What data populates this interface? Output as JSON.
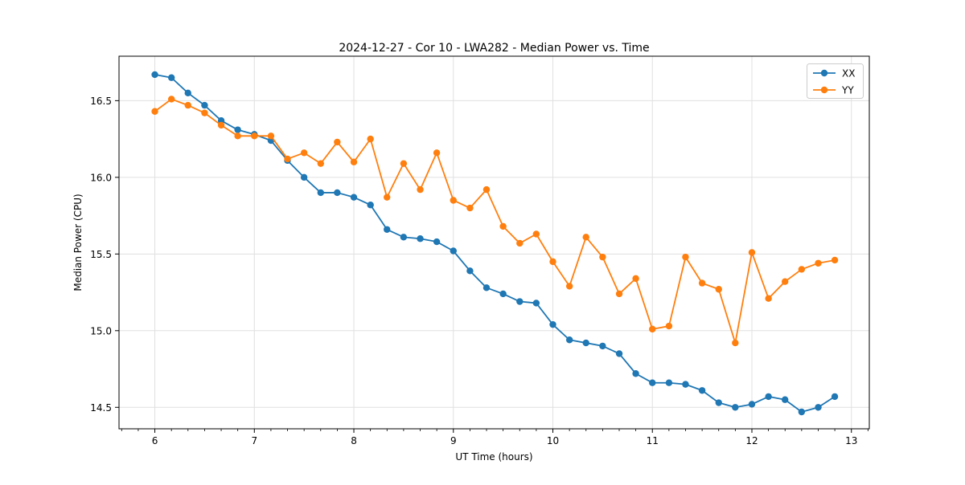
{
  "chart_data": {
    "type": "line",
    "title": "2024-12-27 - Cor 10 - LWA282 - Median Power vs. Time",
    "xlabel": "UT Time (hours)",
    "ylabel": "Median Power (CPU)",
    "xlim": [
      5.64,
      13.18
    ],
    "ylim": [
      14.36,
      16.79
    ],
    "x_ticks": [
      6,
      7,
      8,
      9,
      10,
      11,
      12,
      13
    ],
    "y_ticks": [
      14.5,
      15.0,
      15.5,
      16.0,
      16.5
    ],
    "x_minor_tick_step_hours": 0.1667,
    "grid": "major-only",
    "legend_position": "upper right",
    "marker": "circle",
    "x": [
      6.0,
      6.167,
      6.333,
      6.5,
      6.667,
      6.833,
      7.0,
      7.167,
      7.333,
      7.5,
      7.667,
      7.833,
      8.0,
      8.167,
      8.333,
      8.5,
      8.667,
      8.833,
      9.0,
      9.167,
      9.333,
      9.5,
      9.667,
      9.833,
      10.0,
      10.167,
      10.333,
      10.5,
      10.667,
      10.833,
      11.0,
      11.167,
      11.333,
      11.5,
      11.667,
      11.833,
      12.0,
      12.167,
      12.333,
      12.5,
      12.667,
      12.833
    ],
    "series": [
      {
        "name": "XX",
        "color": "#1f77b4",
        "values": [
          16.67,
          16.65,
          16.55,
          16.47,
          16.37,
          16.31,
          16.28,
          16.24,
          16.11,
          16.0,
          15.9,
          15.9,
          15.87,
          15.82,
          15.66,
          15.61,
          15.6,
          15.58,
          15.52,
          15.39,
          15.28,
          15.24,
          15.19,
          15.18,
          15.04,
          14.94,
          14.92,
          14.9,
          14.85,
          14.72,
          14.66,
          14.66,
          14.65,
          14.61,
          14.53,
          14.5,
          14.52,
          14.57,
          14.55,
          14.47,
          14.5,
          14.57
        ]
      },
      {
        "name": "YY",
        "color": "#ff7f0e",
        "values": [
          16.43,
          16.51,
          16.47,
          16.42,
          16.34,
          16.27,
          16.27,
          16.27,
          16.12,
          16.16,
          16.09,
          16.23,
          16.1,
          16.25,
          15.87,
          16.09,
          15.92,
          16.16,
          15.85,
          15.8,
          15.92,
          15.68,
          15.57,
          15.63,
          15.45,
          15.29,
          15.61,
          15.48,
          15.24,
          15.34,
          15.01,
          15.03,
          15.48,
          15.31,
          15.27,
          14.92,
          15.51,
          15.21,
          15.32,
          15.4,
          15.44,
          15.46
        ]
      }
    ]
  }
}
